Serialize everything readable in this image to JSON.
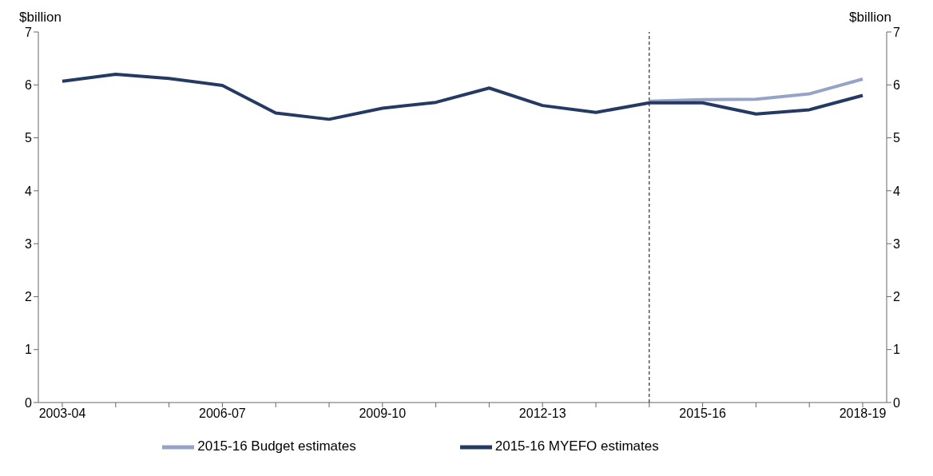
{
  "chart_data": {
    "type": "line",
    "ylabel": "$billion",
    "y2label": "$billion",
    "categories": [
      "2003-04",
      null,
      null,
      "2006-07",
      null,
      null,
      "2009-10",
      null,
      null,
      "2012-13",
      null,
      null,
      "2015-16",
      null,
      null,
      "2018-19"
    ],
    "ylim": [
      0,
      7
    ],
    "yticks": [
      0,
      1,
      2,
      3,
      4,
      5,
      6,
      7
    ],
    "y2lim": [
      0,
      7
    ],
    "y2ticks": [
      0,
      1,
      2,
      3,
      4,
      5,
      6,
      7
    ],
    "series": [
      {
        "name": "2015-16 Budget estimates",
        "color": "#95a3c8",
        "values": [
          null,
          null,
          null,
          null,
          null,
          null,
          null,
          null,
          null,
          null,
          null,
          5.69,
          5.72,
          5.73,
          5.83,
          6.11
        ]
      },
      {
        "name": "2015-16 MYEFO estimates",
        "color": "#253a62",
        "values": [
          6.07,
          6.2,
          6.12,
          5.99,
          5.47,
          5.35,
          5.56,
          5.67,
          5.94,
          5.61,
          5.48,
          5.66,
          5.66,
          5.45,
          5.53,
          5.8
        ]
      }
    ],
    "legend": "bottom",
    "line_style": "solid"
  }
}
